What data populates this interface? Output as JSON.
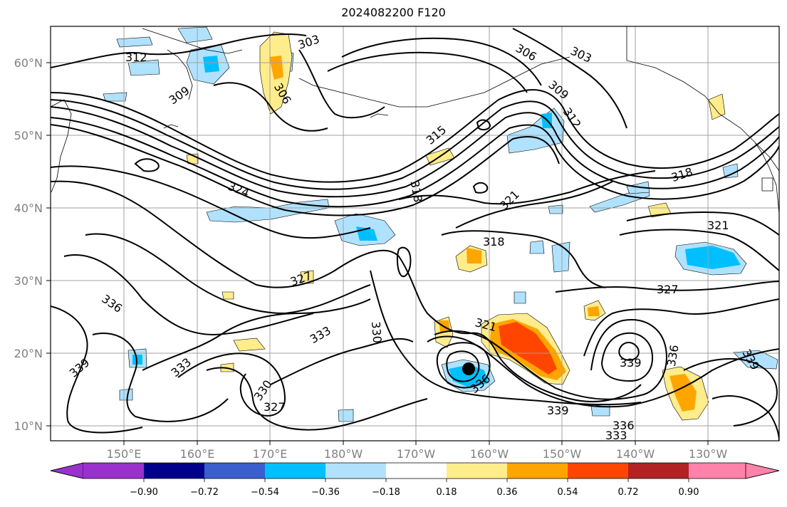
{
  "title": "2024082200 F120",
  "map": {
    "lon_labels": [
      "150°E",
      "160°E",
      "170°E",
      "180°W",
      "170°W",
      "160°W",
      "150°W",
      "140°W",
      "130°W"
    ],
    "lat_labels": [
      "60°N",
      "50°N",
      "40°N",
      "30°N",
      "20°N",
      "10°N"
    ],
    "lon_range": [
      "140°E",
      "120°W"
    ],
    "lat_range": [
      "8°N",
      "65°N"
    ],
    "projection": "cylindrical",
    "grid": true,
    "storm_marker": {
      "lon": "162.5°W",
      "lat": "17.8°N"
    },
    "contour_labels": [
      {
        "text": "303"
      },
      {
        "text": "312"
      },
      {
        "text": "309"
      },
      {
        "text": "306"
      },
      {
        "text": "306"
      },
      {
        "text": "303"
      },
      {
        "text": "309"
      },
      {
        "text": "312"
      },
      {
        "text": "315"
      },
      {
        "text": "318"
      },
      {
        "text": "321"
      },
      {
        "text": "324"
      },
      {
        "text": "318"
      },
      {
        "text": "318"
      },
      {
        "text": "321"
      },
      {
        "text": "327"
      },
      {
        "text": "327"
      },
      {
        "text": "336"
      },
      {
        "text": "333"
      },
      {
        "text": "330"
      },
      {
        "text": "321"
      },
      {
        "text": "339"
      },
      {
        "text": "333"
      },
      {
        "text": "330"
      },
      {
        "text": "327"
      },
      {
        "text": "336"
      },
      {
        "text": "339"
      },
      {
        "text": "336"
      },
      {
        "text": "339"
      },
      {
        "text": "339"
      },
      {
        "text": "336"
      },
      {
        "text": "333"
      }
    ]
  },
  "colorbar": {
    "ticks": [
      "−0.90",
      "−0.72",
      "−0.54",
      "−0.36",
      "−0.18",
      "0.18",
      "0.36",
      "0.54",
      "0.72",
      "0.90"
    ],
    "colors": [
      "#9932cc",
      "#00008b",
      "#3a5fcd",
      "#00bfff",
      "#b0e2ff",
      "#ffffff",
      "#ffec8b",
      "#ffa500",
      "#ff4500",
      "#b22222",
      "#ff82ab"
    ]
  },
  "colors": {
    "contour": "#000000",
    "coast": "#000000",
    "grid": "#a0a0a0",
    "axis_text": "#808080"
  }
}
